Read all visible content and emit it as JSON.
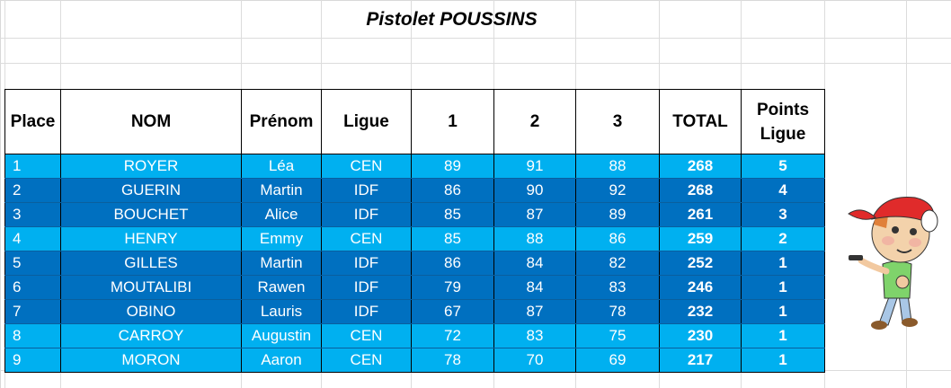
{
  "title": "Pistolet POUSSINS",
  "columns": {
    "place": "Place",
    "nom": "NOM",
    "prenom": "Prénom",
    "ligue": "Ligue",
    "s1": "1",
    "s2": "2",
    "s3": "3",
    "total": "TOTAL",
    "points_line1": "Points",
    "points_line2": "Ligue"
  },
  "rows": [
    {
      "place": "1",
      "nom": "ROYER",
      "prenom": "Léa",
      "ligue": "CEN",
      "s1": "89",
      "s2": "91",
      "s3": "88",
      "total": "268",
      "points": "5"
    },
    {
      "place": "2",
      "nom": "GUERIN",
      "prenom": "Martin",
      "ligue": "IDF",
      "s1": "86",
      "s2": "90",
      "s3": "92",
      "total": "268",
      "points": "4"
    },
    {
      "place": "3",
      "nom": "BOUCHET",
      "prenom": "Alice",
      "ligue": "IDF",
      "s1": "85",
      "s2": "87",
      "s3": "89",
      "total": "261",
      "points": "3"
    },
    {
      "place": "4",
      "nom": "HENRY",
      "prenom": "Emmy",
      "ligue": "CEN",
      "s1": "85",
      "s2": "88",
      "s3": "86",
      "total": "259",
      "points": "2"
    },
    {
      "place": "5",
      "nom": "GILLES",
      "prenom": "Martin",
      "ligue": "IDF",
      "s1": "86",
      "s2": "84",
      "s3": "82",
      "total": "252",
      "points": "1"
    },
    {
      "place": "6",
      "nom": "MOUTALIBI",
      "prenom": "Rawen",
      "ligue": "IDF",
      "s1": "79",
      "s2": "84",
      "s3": "83",
      "total": "246",
      "points": "1"
    },
    {
      "place": "7",
      "nom": "OBINO",
      "prenom": "Lauris",
      "ligue": "IDF",
      "s1": "67",
      "s2": "87",
      "s3": "78",
      "total": "232",
      "points": "1"
    },
    {
      "place": "8",
      "nom": "CARROY",
      "prenom": "Augustin",
      "ligue": "CEN",
      "s1": "72",
      "s2": "83",
      "s3": "75",
      "total": "230",
      "points": "1"
    },
    {
      "place": "9",
      "nom": "MORON",
      "prenom": "Aaron",
      "ligue": "CEN",
      "s1": "78",
      "s2": "70",
      "s3": "69",
      "total": "217",
      "points": "1"
    }
  ],
  "colors": {
    "row_light": "#00b0f0",
    "row_dark": "#0070c0",
    "cap": "#e02b2b",
    "shirt": "#7fd36b"
  },
  "mascot": "cartoon-boy-shooter-image"
}
